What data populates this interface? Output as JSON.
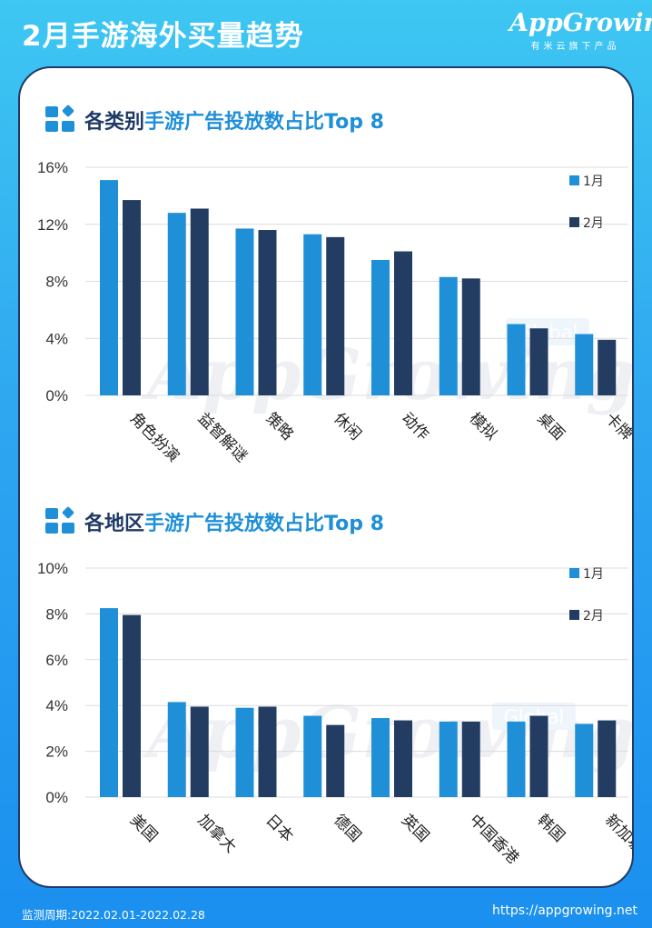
{
  "header": {
    "title": "2月手游海外买量趋势",
    "brand_name": "AppGrowing",
    "brand_tagline": "有米云旗下产品"
  },
  "sections": [
    {
      "title_accent": "各类别",
      "title_rest": "手游广告投放数占比Top 8"
    },
    {
      "title_accent": "各地区",
      "title_rest": "手游广告投放数占比Top 8"
    }
  ],
  "watermark": {
    "text": "AppGrowing",
    "badge": "Global"
  },
  "footer": {
    "period": "监测周期:2022.02.01-2022.02.28",
    "url": "https://appgrowing.net"
  },
  "colors": {
    "jan": "#1f8fd8",
    "feb": "#233c62",
    "grid": "#dcdcdc",
    "accent": "#1f8fd8",
    "dark": "#1f3a66"
  },
  "chart_data": [
    {
      "type": "bar",
      "title": "各类别手游广告投放数占比Top 8",
      "categories": [
        "角色扮演",
        "益智解谜",
        "策略",
        "休闲",
        "动作",
        "模拟",
        "桌面",
        "卡牌"
      ],
      "series": [
        {
          "name": "1月",
          "values": [
            15.1,
            12.8,
            11.7,
            11.3,
            9.5,
            8.3,
            5.0,
            4.3
          ]
        },
        {
          "name": "2月",
          "values": [
            13.7,
            13.1,
            11.6,
            11.1,
            10.1,
            8.2,
            4.7,
            3.9
          ]
        }
      ],
      "yticks": [
        "0%",
        "4%",
        "8%",
        "12%",
        "16%"
      ],
      "ylim": [
        0,
        16
      ],
      "grid": true,
      "legend": "right"
    },
    {
      "type": "bar",
      "title": "各地区手游广告投放数占比Top 8",
      "categories": [
        "美国",
        "加拿大",
        "日本",
        "德国",
        "英国",
        "中国香港",
        "韩国",
        "新加坡"
      ],
      "series": [
        {
          "name": "1月",
          "values": [
            8.25,
            4.15,
            3.9,
            3.55,
            3.45,
            3.3,
            3.3,
            3.2
          ]
        },
        {
          "name": "2月",
          "values": [
            7.95,
            3.95,
            3.95,
            3.15,
            3.35,
            3.3,
            3.55,
            3.35
          ]
        }
      ],
      "yticks": [
        "0%",
        "2%",
        "4%",
        "6%",
        "8%",
        "10%"
      ],
      "ylim": [
        0,
        10
      ],
      "grid": true,
      "legend": "right"
    }
  ]
}
